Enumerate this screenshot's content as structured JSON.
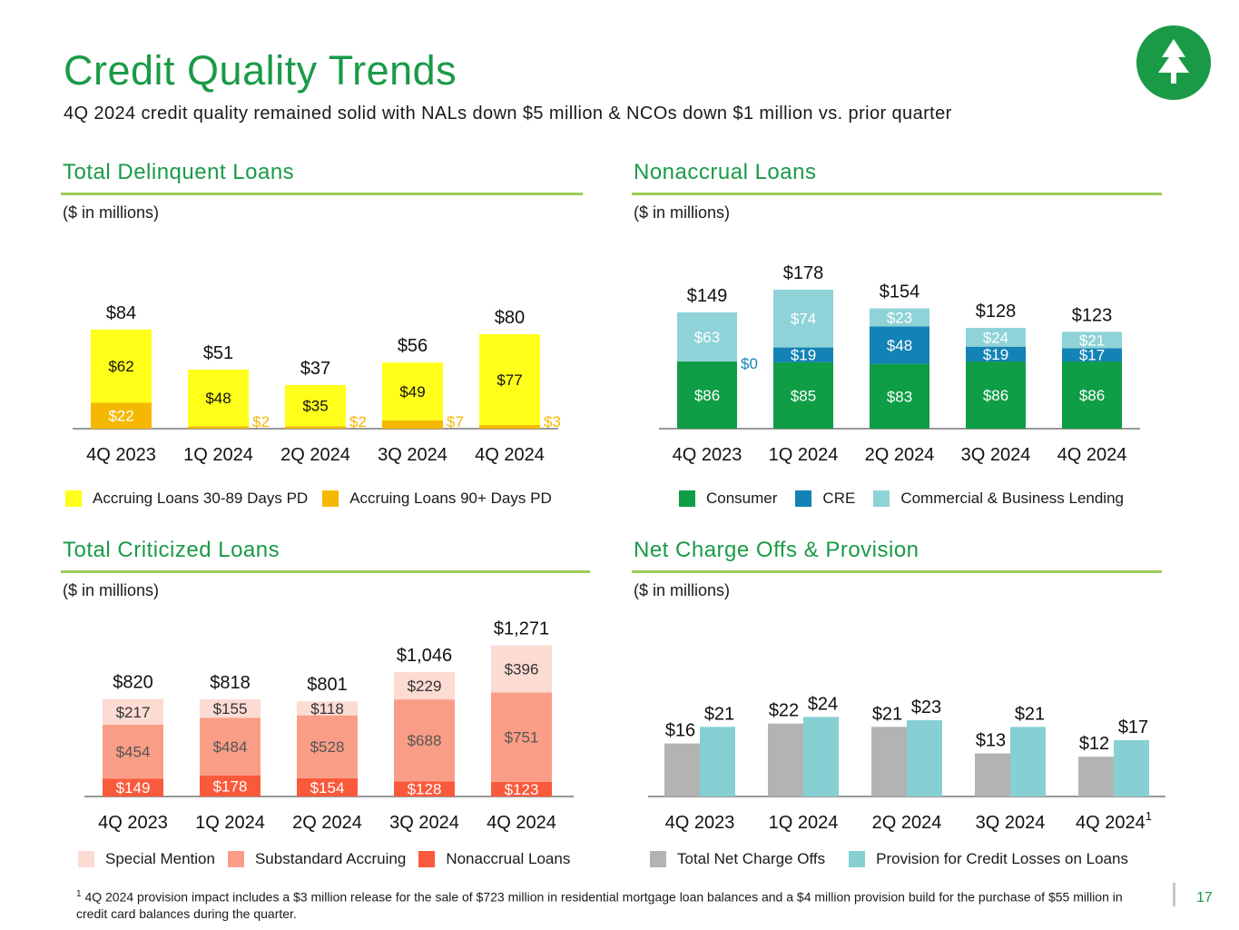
{
  "header": {
    "title": "Credit Quality Trends",
    "subtitle": "4Q 2024 credit quality remained solid with NALs down $5 million & NCOs down $1 million vs. prior quarter"
  },
  "colors": {
    "brand_green": "#1a9a47",
    "rule_green": "#9ccc55",
    "delinq_30_89": "#ffff1a",
    "delinq_90": "#f5b800",
    "consumer": "#0f9d46",
    "cre": "#1283b4",
    "cbl": "#8fd3d8",
    "special_mention": "#fcdbd3",
    "substandard": "#fa9d86",
    "nonaccrual": "#fa5a3c",
    "nco": "#b3b3b3",
    "provision": "#86d0d4"
  },
  "charts": {
    "delinquent": {
      "title": "Total Delinquent Loans",
      "units": "($ in millions)"
    },
    "nonaccrual": {
      "title": "Nonaccrual Loans",
      "units": "($ in millions)"
    },
    "criticized": {
      "title": "Total Criticized Loans",
      "units": "($ in millions)"
    },
    "nco": {
      "title": "Net Charge Offs & Provision",
      "units": "($ in millions)"
    }
  },
  "chart_data": [
    {
      "type": "bar",
      "stacked": true,
      "title": "Total Delinquent Loans",
      "categories": [
        "4Q 2023",
        "1Q 2024",
        "2Q 2024",
        "3Q 2024",
        "4Q 2024"
      ],
      "series": [
        {
          "name": "Accruing Loans 90+ Days PD",
          "values": [
            22,
            2,
            2,
            7,
            3
          ],
          "labels": [
            "$22",
            "$2",
            "$2",
            "$7",
            "$3"
          ]
        },
        {
          "name": "Accruing Loans 30-89 Days PD",
          "values": [
            62,
            48,
            35,
            49,
            77
          ],
          "labels": [
            "$62",
            "$48",
            "$35",
            "$49",
            "$77"
          ]
        }
      ],
      "totals": [
        "$84",
        "$51",
        "$37",
        "$56",
        "$80"
      ],
      "ylim": [
        0,
        100
      ]
    },
    {
      "type": "bar",
      "stacked": true,
      "title": "Nonaccrual Loans",
      "categories": [
        "4Q 2023",
        "1Q 2024",
        "2Q 2024",
        "3Q 2024",
        "4Q 2024"
      ],
      "series": [
        {
          "name": "Consumer",
          "values": [
            86,
            85,
            83,
            86,
            86
          ],
          "labels": [
            "$86",
            "$85",
            "$83",
            "$86",
            "$86"
          ]
        },
        {
          "name": "CRE",
          "values": [
            0,
            19,
            48,
            19,
            17
          ],
          "labels": [
            "$0",
            "$19",
            "$48",
            "$19",
            "$17"
          ]
        },
        {
          "name": "Commercial & Business Lending",
          "values": [
            63,
            74,
            23,
            24,
            21
          ],
          "labels": [
            "$63",
            "$74",
            "$23",
            "$24",
            "$21"
          ]
        }
      ],
      "totals": [
        "$149",
        "$178",
        "$154",
        "$128",
        "$123"
      ],
      "ylim": [
        0,
        200
      ]
    },
    {
      "type": "bar",
      "stacked": true,
      "title": "Total Criticized Loans",
      "categories": [
        "4Q 2023",
        "1Q 2024",
        "2Q 2024",
        "3Q 2024",
        "4Q 2024"
      ],
      "series": [
        {
          "name": "Nonaccrual Loans",
          "values": [
            149,
            178,
            154,
            128,
            123
          ],
          "labels": [
            "$149",
            "$178",
            "$154",
            "$128",
            "$123"
          ]
        },
        {
          "name": "Substandard Accruing",
          "values": [
            454,
            484,
            528,
            688,
            751
          ],
          "labels": [
            "$454",
            "$484",
            "$528",
            "$688",
            "$751"
          ]
        },
        {
          "name": "Special Mention",
          "values": [
            217,
            155,
            118,
            229,
            396
          ],
          "labels": [
            "$217",
            "$155",
            "$118",
            "$229",
            "$396"
          ]
        }
      ],
      "totals": [
        "$820",
        "$818",
        "$801",
        "$1,046",
        "$1,271"
      ],
      "ylim": [
        0,
        1500
      ]
    },
    {
      "type": "bar",
      "stacked": false,
      "title": "Net Charge Offs & Provision",
      "categories": [
        "4Q 2023",
        "1Q 2024",
        "2Q 2024",
        "3Q 2024",
        "4Q 2024"
      ],
      "category_superscripts": [
        "",
        "",
        "",
        "",
        "1"
      ],
      "series": [
        {
          "name": "Total Net Charge Offs",
          "values": [
            16,
            22,
            21,
            13,
            12
          ],
          "labels": [
            "$16",
            "$22",
            "$21",
            "$13",
            "$12"
          ]
        },
        {
          "name": "Provision for Credit Losses on Loans",
          "values": [
            21,
            24,
            23,
            21,
            17
          ],
          "labels": [
            "$21",
            "$24",
            "$23",
            "$21",
            "$17"
          ]
        }
      ],
      "ylim": [
        0,
        35
      ]
    }
  ],
  "footnote": {
    "marker": "1",
    "text": "4Q 2024 provision impact includes a $3 million release for the sale of $723 million in residential mortgage loan balances and a $4 million provision build for the purchase of $55 million in credit card balances during the quarter."
  },
  "page_number": "17"
}
